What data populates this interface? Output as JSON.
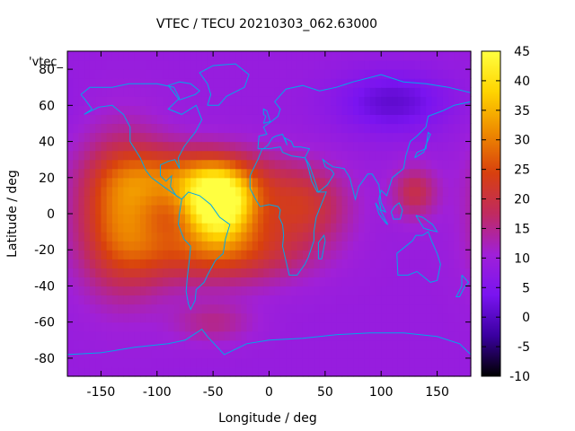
{
  "chart_data": {
    "type": "heatmap",
    "title": "VTEC / TECU 20210303_062.63000",
    "xlabel": "Longitude / deg",
    "ylabel": "Latitude / deg",
    "xlim": [
      -180,
      180
    ],
    "ylim": [
      -90,
      90
    ],
    "x_ticks": [
      -150,
      -100,
      -50,
      0,
      50,
      100,
      150
    ],
    "y_ticks": [
      80,
      60,
      40,
      20,
      0,
      -20,
      -40,
      -60,
      -80
    ],
    "series_key": "'vtec_",
    "colorbar": {
      "min": -10,
      "max": 45,
      "ticks": [
        45,
        40,
        35,
        30,
        25,
        20,
        15,
        10,
        5,
        0,
        -5,
        -10
      ],
      "colormap": [
        "#000000",
        "#3a00a0",
        "#7a14f0",
        "#a020d8",
        "#c02a60",
        "#d8400e",
        "#ee8a00",
        "#ffd400",
        "#ffff40"
      ]
    },
    "field": {
      "background_tecu": 9,
      "blobs": [
        {
          "name": "south-america-peak",
          "lon": -45,
          "lat": 5,
          "peak_tecu": 36,
          "sigma_lon": 22,
          "sigma_lat": 13
        },
        {
          "name": "pacific-crest",
          "lon": -130,
          "lat": 0,
          "peak_tecu": 20,
          "sigma_lon": 28,
          "sigma_lat": 28
        },
        {
          "name": "northern-crest",
          "lon": -65,
          "lat": 20,
          "peak_tecu": 17,
          "sigma_lon": 45,
          "sigma_lat": 12
        },
        {
          "name": "southern-crest",
          "lon": -45,
          "lat": -20,
          "peak_tecu": 16,
          "sigma_lon": 50,
          "sigma_lat": 13
        },
        {
          "name": "atlantic-africa-tail",
          "lon": 30,
          "lat": 5,
          "peak_tecu": 12,
          "sigma_lon": 28,
          "sigma_lat": 15
        },
        {
          "name": "west-pacific",
          "lon": 130,
          "lat": 12,
          "peak_tecu": 10,
          "sigma_lon": 14,
          "sigma_lat": 10
        },
        {
          "name": "south-pacific-patch",
          "lon": -50,
          "lat": -60,
          "peak_tecu": 6,
          "sigma_lon": 25,
          "sigma_lat": 8
        },
        {
          "name": "siberia-trough",
          "lon": 110,
          "lat": 62,
          "peak_tecu": -8,
          "sigma_lon": 35,
          "sigma_lat": 12
        }
      ]
    }
  },
  "colors": {
    "coastline": "#00a8e8",
    "axis": "#000000"
  }
}
